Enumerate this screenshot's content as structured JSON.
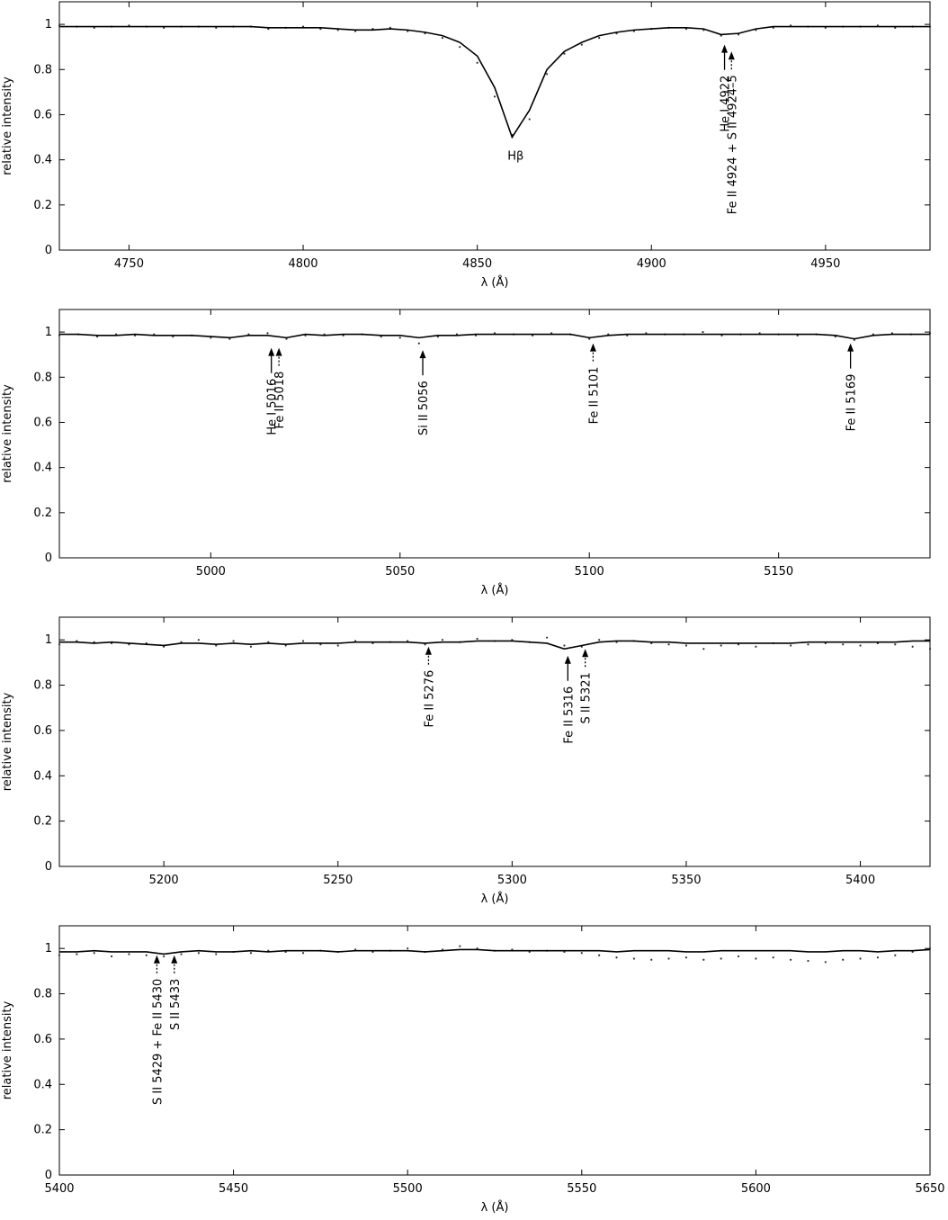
{
  "chart_data": [
    {
      "type": "line",
      "xlabel": "λ (Å)",
      "ylabel": "relative intensity",
      "xlim": [
        4730,
        4980
      ],
      "ylim": [
        0,
        1.1
      ],
      "xticks": [
        4750,
        4800,
        4850,
        4900,
        4950
      ],
      "yticks": [
        0,
        0.2,
        0.4,
        0.6,
        0.8,
        1
      ],
      "x": [
        4730,
        4735,
        4740,
        4745,
        4750,
        4755,
        4760,
        4765,
        4770,
        4775,
        4780,
        4785,
        4790,
        4795,
        4800,
        4805,
        4810,
        4815,
        4820,
        4825,
        4830,
        4835,
        4840,
        4845,
        4850,
        4855,
        4860,
        4865,
        4870,
        4875,
        4880,
        4885,
        4890,
        4895,
        4900,
        4905,
        4910,
        4915,
        4920,
        4925,
        4930,
        4935,
        4940,
        4945,
        4950,
        4955,
        4960,
        4965,
        4970,
        4975,
        4980
      ],
      "series": [
        {
          "style": "line",
          "color": "#000000",
          "values": [
            0.99,
            0.99,
            0.99,
            0.99,
            0.99,
            0.99,
            0.99,
            0.99,
            0.99,
            0.99,
            0.99,
            0.99,
            0.985,
            0.985,
            0.985,
            0.985,
            0.98,
            0.975,
            0.975,
            0.98,
            0.975,
            0.965,
            0.95,
            0.92,
            0.86,
            0.72,
            0.5,
            0.62,
            0.8,
            0.88,
            0.92,
            0.95,
            0.965,
            0.975,
            0.98,
            0.985,
            0.985,
            0.98,
            0.955,
            0.96,
            0.98,
            0.99,
            0.99,
            0.99,
            0.99,
            0.99,
            0.99,
            0.99,
            0.99,
            0.99,
            0.99
          ]
        },
        {
          "style": "dots",
          "color": "#333333",
          "values": [
            0.995,
            0.99,
            0.985,
            0.99,
            0.995,
            0.99,
            0.985,
            0.99,
            0.99,
            0.985,
            0.99,
            0.99,
            0.98,
            0.985,
            0.99,
            0.98,
            0.975,
            0.97,
            0.98,
            0.985,
            0.97,
            0.96,
            0.94,
            0.9,
            0.83,
            0.68,
            0.51,
            0.58,
            0.78,
            0.87,
            0.91,
            0.94,
            0.96,
            0.97,
            0.98,
            0.985,
            0.98,
            0.975,
            0.95,
            0.955,
            0.975,
            0.985,
            0.995,
            0.99,
            0.985,
            0.99,
            0.99,
            0.995,
            0.985,
            0.99,
            0.99
          ]
        }
      ],
      "annotations": [
        {
          "text": "Hβ",
          "x": 4861,
          "y": 0.4,
          "arrow": "none"
        },
        {
          "text": "He I 4922",
          "x": 4921,
          "y": 0.91,
          "arrow": "solid"
        },
        {
          "text": "Fe II 4924 + S II 4924–5",
          "x": 4923,
          "y": 0.88,
          "arrow": "dotted"
        }
      ]
    },
    {
      "type": "line",
      "xlabel": "λ (Å)",
      "ylabel": "relative intensity",
      "xlim": [
        4960,
        5190
      ],
      "ylim": [
        0,
        1.1
      ],
      "xticks": [
        5000,
        5050,
        5100,
        5150
      ],
      "yticks": [
        0,
        0.2,
        0.4,
        0.6,
        0.8,
        1
      ],
      "x": [
        4960,
        4965,
        4970,
        4975,
        4980,
        4985,
        4990,
        4995,
        5000,
        5005,
        5010,
        5015,
        5020,
        5025,
        5030,
        5035,
        5040,
        5045,
        5050,
        5055,
        5060,
        5065,
        5070,
        5075,
        5080,
        5085,
        5090,
        5095,
        5100,
        5105,
        5110,
        5115,
        5120,
        5125,
        5130,
        5135,
        5140,
        5145,
        5150,
        5155,
        5160,
        5165,
        5170,
        5175,
        5180,
        5185,
        5190
      ],
      "series": [
        {
          "style": "line",
          "color": "#000000",
          "values": [
            0.99,
            0.99,
            0.985,
            0.985,
            0.99,
            0.985,
            0.985,
            0.985,
            0.98,
            0.975,
            0.985,
            0.985,
            0.975,
            0.99,
            0.985,
            0.99,
            0.99,
            0.985,
            0.985,
            0.975,
            0.985,
            0.985,
            0.99,
            0.99,
            0.99,
            0.99,
            0.99,
            0.99,
            0.975,
            0.985,
            0.99,
            0.99,
            0.99,
            0.99,
            0.99,
            0.99,
            0.99,
            0.99,
            0.99,
            0.99,
            0.99,
            0.985,
            0.97,
            0.985,
            0.99,
            0.99,
            0.99
          ]
        },
        {
          "style": "dots",
          "color": "#333333",
          "values": [
            0.985,
            0.99,
            0.98,
            0.99,
            0.985,
            0.99,
            0.98,
            0.985,
            0.975,
            0.97,
            0.99,
            0.995,
            0.97,
            0.985,
            0.99,
            0.985,
            0.99,
            0.98,
            0.975,
            0.95,
            0.98,
            0.99,
            0.985,
            0.995,
            0.99,
            0.985,
            0.995,
            0.99,
            0.97,
            0.99,
            0.985,
            0.995,
            0.99,
            0.99,
            1.0,
            0.985,
            0.99,
            0.995,
            0.99,
            0.985,
            0.99,
            0.98,
            0.965,
            0.99,
            0.995,
            0.99,
            0.995
          ]
        }
      ],
      "annotations": [
        {
          "text": "He I 5016",
          "x": 5016,
          "y": 0.93,
          "arrow": "solid"
        },
        {
          "text": "Fe II 5018",
          "x": 5018,
          "y": 0.93,
          "arrow": "dotted"
        },
        {
          "text": "Si II 5056",
          "x": 5056,
          "y": 0.92,
          "arrow": "solid"
        },
        {
          "text": "Fe II 5101",
          "x": 5101,
          "y": 0.95,
          "arrow": "dotted"
        },
        {
          "text": "Fe II 5169",
          "x": 5169,
          "y": 0.95,
          "arrow": "solid"
        }
      ]
    },
    {
      "type": "line",
      "xlabel": "λ (Å)",
      "ylabel": "relative intensity",
      "xlim": [
        5170,
        5420
      ],
      "ylim": [
        0,
        1.1
      ],
      "xticks": [
        5200,
        5250,
        5300,
        5350,
        5400
      ],
      "yticks": [
        0,
        0.2,
        0.4,
        0.6,
        0.8,
        1
      ],
      "x": [
        5170,
        5175,
        5180,
        5185,
        5190,
        5195,
        5200,
        5205,
        5210,
        5215,
        5220,
        5225,
        5230,
        5235,
        5240,
        5245,
        5250,
        5255,
        5260,
        5265,
        5270,
        5275,
        5280,
        5285,
        5290,
        5295,
        5300,
        5305,
        5310,
        5315,
        5320,
        5325,
        5330,
        5335,
        5340,
        5345,
        5350,
        5355,
        5360,
        5365,
        5370,
        5375,
        5380,
        5385,
        5390,
        5395,
        5400,
        5405,
        5410,
        5415,
        5420
      ],
      "series": [
        {
          "style": "line",
          "color": "#000000",
          "values": [
            0.99,
            0.99,
            0.985,
            0.99,
            0.985,
            0.98,
            0.975,
            0.985,
            0.985,
            0.98,
            0.985,
            0.98,
            0.985,
            0.98,
            0.985,
            0.985,
            0.985,
            0.99,
            0.99,
            0.99,
            0.99,
            0.985,
            0.99,
            0.99,
            0.995,
            0.995,
            0.995,
            0.99,
            0.985,
            0.96,
            0.975,
            0.99,
            0.995,
            0.995,
            0.99,
            0.99,
            0.985,
            0.985,
            0.985,
            0.985,
            0.985,
            0.985,
            0.985,
            0.99,
            0.99,
            0.99,
            0.99,
            0.99,
            0.99,
            0.995,
            0.995
          ]
        },
        {
          "style": "dots",
          "color": "#333333",
          "values": [
            0.98,
            0.995,
            0.99,
            0.985,
            0.98,
            0.985,
            0.97,
            0.99,
            1.0,
            0.975,
            0.995,
            0.97,
            0.99,
            0.975,
            0.995,
            0.98,
            0.975,
            0.995,
            0.985,
            0.99,
            0.995,
            0.98,
            1.0,
            0.99,
            1.005,
            0.995,
            1.0,
            0.99,
            1.01,
            0.975,
            0.97,
            1.0,
            0.99,
            0.995,
            0.985,
            0.98,
            0.975,
            0.96,
            0.975,
            0.98,
            0.97,
            0.985,
            0.975,
            0.98,
            0.985,
            0.98,
            0.975,
            0.985,
            0.98,
            0.97,
            0.96
          ]
        }
      ],
      "annotations": [
        {
          "text": "Fe II 5276",
          "x": 5276,
          "y": 0.97,
          "arrow": "dotted"
        },
        {
          "text": "Fe II 5316",
          "x": 5316,
          "y": 0.93,
          "arrow": "solid"
        },
        {
          "text": "S II 5321",
          "x": 5321,
          "y": 0.96,
          "arrow": "dotted"
        }
      ]
    },
    {
      "type": "line",
      "xlabel": "λ (Å)",
      "ylabel": "relative intensity",
      "xlim": [
        5400,
        5650
      ],
      "ylim": [
        0,
        1.1
      ],
      "xticks": [
        5400,
        5450,
        5500,
        5550,
        5600,
        5650
      ],
      "yticks": [
        0,
        0.2,
        0.4,
        0.6,
        0.8,
        1
      ],
      "x": [
        5400,
        5405,
        5410,
        5415,
        5420,
        5425,
        5430,
        5435,
        5440,
        5445,
        5450,
        5455,
        5460,
        5465,
        5470,
        5475,
        5480,
        5485,
        5490,
        5495,
        5500,
        5505,
        5510,
        5515,
        5520,
        5525,
        5530,
        5535,
        5540,
        5545,
        5550,
        5555,
        5560,
        5565,
        5570,
        5575,
        5580,
        5585,
        5590,
        5595,
        5600,
        5605,
        5610,
        5615,
        5620,
        5625,
        5630,
        5635,
        5640,
        5645,
        5650
      ],
      "series": [
        {
          "style": "line",
          "color": "#000000",
          "values": [
            0.985,
            0.985,
            0.99,
            0.985,
            0.985,
            0.985,
            0.975,
            0.985,
            0.99,
            0.985,
            0.985,
            0.99,
            0.985,
            0.99,
            0.99,
            0.99,
            0.985,
            0.99,
            0.99,
            0.99,
            0.99,
            0.985,
            0.99,
            0.995,
            0.995,
            0.99,
            0.99,
            0.99,
            0.99,
            0.99,
            0.99,
            0.99,
            0.985,
            0.99,
            0.99,
            0.99,
            0.985,
            0.985,
            0.99,
            0.99,
            0.99,
            0.99,
            0.99,
            0.985,
            0.985,
            0.99,
            0.99,
            0.985,
            0.99,
            0.99,
            0.995
          ]
        },
        {
          "style": "dots",
          "color": "#333333",
          "values": [
            0.97,
            0.975,
            0.98,
            0.965,
            0.975,
            0.97,
            0.965,
            0.975,
            0.98,
            0.975,
            0.985,
            0.98,
            0.99,
            0.985,
            0.98,
            0.99,
            0.985,
            0.995,
            0.985,
            0.99,
            1.0,
            0.985,
            0.995,
            1.01,
            1.0,
            0.99,
            0.995,
            0.985,
            0.99,
            0.985,
            0.98,
            0.97,
            0.96,
            0.955,
            0.95,
            0.955,
            0.96,
            0.95,
            0.955,
            0.965,
            0.955,
            0.96,
            0.95,
            0.945,
            0.94,
            0.95,
            0.955,
            0.96,
            0.97,
            0.985,
            1.0
          ]
        }
      ],
      "annotations": [
        {
          "text": "S II 5429 + Fe II 5430",
          "x": 5428,
          "y": 0.97,
          "arrow": "dotted"
        },
        {
          "text": "S II 5433",
          "x": 5433,
          "y": 0.97,
          "arrow": "dotted"
        }
      ]
    }
  ]
}
